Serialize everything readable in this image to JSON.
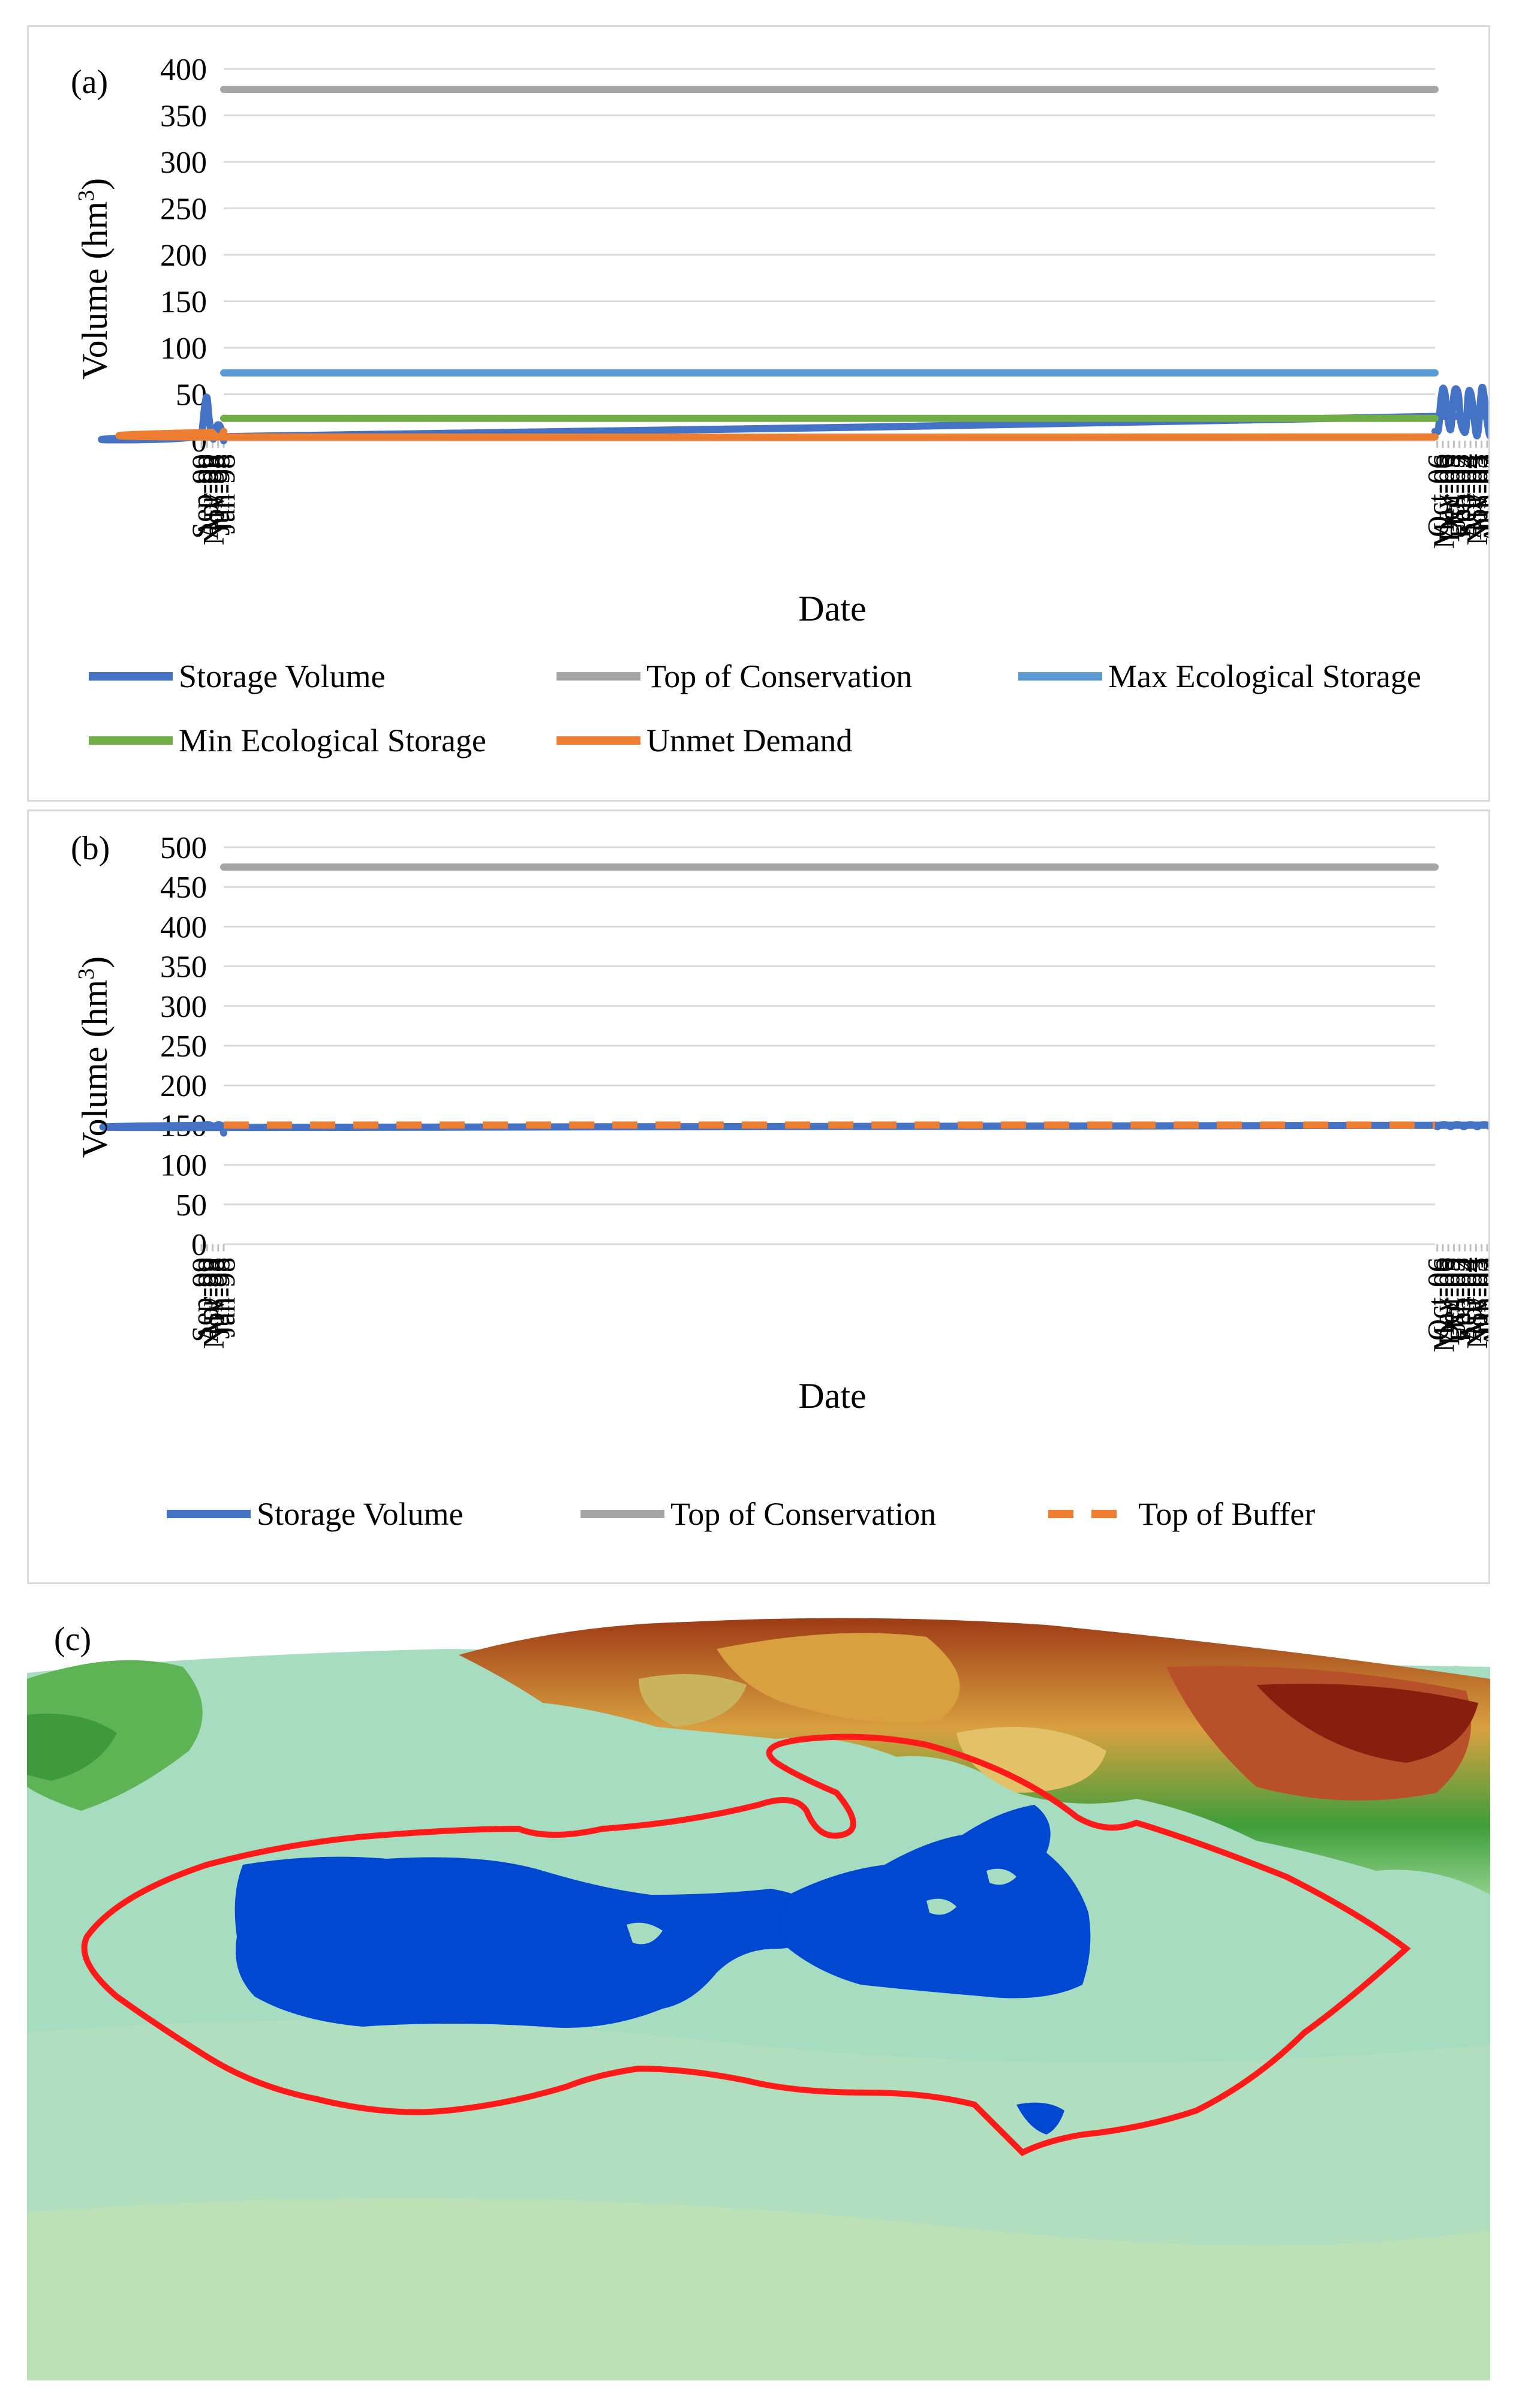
{
  "chart_data": [
    {
      "panel_label": "(a)",
      "type": "line",
      "xlabel": "Date",
      "ylabel": "Volume (hm",
      "ylabel_sup": "3",
      "ylabel_end": ")",
      "ylim": [
        0,
        400
      ],
      "yticks": [
        "0",
        "50",
        "100",
        "150",
        "200",
        "250",
        "300",
        "350",
        "400"
      ],
      "xlim": [
        "1998-01",
        "2006-12"
      ],
      "xticks": [
        "Jan-98",
        "Jun-98",
        "Nov-98",
        "Apr-99",
        "Sep-99",
        "Feb-00",
        "Jul-00",
        "Dec-00",
        "May-01",
        "Oct-01",
        "Mar-02",
        "Aug-02",
        "Jan-03",
        "Jun-03",
        "Nov-03",
        "Apr-04",
        "Sep-04",
        "Feb-05",
        "Jul-05",
        "Dec-05",
        "May-06",
        "Oct-06"
      ],
      "grid": "horizontal",
      "legend_position": "bottom",
      "series": [
        {
          "name": "Storage Volume",
          "color": "#4472c4",
          "style": "solid",
          "x": [
            "Jan-98",
            "Apr-98",
            "Jul-98",
            "Sep-98",
            "Nov-98",
            "Feb-99",
            "Apr-99",
            "Jun-99",
            "Sep-99",
            "Nov-99",
            "Jan-00",
            "Apr-00",
            "Jun-00",
            "Aug-00",
            "Nov-00",
            "Jan-01",
            "Apr-01",
            "Jun-01",
            "Aug-01",
            "Oct-01",
            "Dec-01",
            "Mar-02",
            "May-02",
            "Jul-02",
            "Sep-02",
            "Nov-02",
            "Feb-03",
            "Apr-03",
            "Jun-03",
            "Sep-03",
            "Nov-03",
            "Feb-04",
            "Apr-04",
            "Jun-04",
            "Aug-04",
            "Oct-04",
            "Jan-05",
            "Mar-05",
            "Jun-05",
            "Aug-05",
            "Oct-05",
            "Jan-06",
            "Mar-06",
            "May-06",
            "Jul-06",
            "Sep-06",
            "Dec-06"
          ],
          "y": [
            0,
            15,
            16,
            5,
            3,
            22,
            46,
            38,
            5,
            4,
            28,
            50,
            42,
            8,
            5,
            30,
            52,
            44,
            10,
            6,
            18,
            50,
            54,
            40,
            10,
            7,
            30,
            50,
            55,
            12,
            8,
            38,
            52,
            50,
            14,
            10,
            22,
            50,
            55,
            38,
            12,
            28,
            50,
            56,
            40,
            12,
            10
          ]
        },
        {
          "name": "Top of Conservation",
          "color": "#a5a5a5",
          "style": "solid",
          "x": [
            "Jan-98",
            "Dec-06"
          ],
          "y": [
            378,
            378
          ]
        },
        {
          "name": "Max Ecological Storage",
          "color": "#5b9bd5",
          "style": "solid",
          "x": [
            "Jan-98",
            "Dec-06"
          ],
          "y": [
            73,
            73
          ]
        },
        {
          "name": "Min Ecological Storage",
          "color": "#70ad47",
          "style": "solid",
          "x": [
            "Jan-98",
            "Dec-06"
          ],
          "y": [
            24,
            24
          ]
        },
        {
          "name": "Unmet Demand",
          "color": "#ed7d31",
          "style": "solid",
          "x": [
            "Jan-98",
            "Mar-98",
            "Jun-98",
            "Oct-98",
            "Dec-98",
            "Feb-99",
            "Dec-06"
          ],
          "y": [
            10,
            5,
            4,
            7,
            9,
            4,
            4
          ]
        }
      ]
    },
    {
      "panel_label": "(b)",
      "type": "line",
      "xlabel": "Date",
      "ylabel": "Volume (hm",
      "ylabel_sup": "3",
      "ylabel_end": ")",
      "ylim": [
        0,
        500
      ],
      "yticks": [
        "0",
        "50",
        "100",
        "150",
        "200",
        "250",
        "300",
        "350",
        "400",
        "450",
        "500"
      ],
      "xlim": [
        "1998-01",
        "2006-12"
      ],
      "xticks": [
        "Jan-98",
        "Jun-98",
        "Nov-98",
        "Apr-99",
        "Sep-99",
        "Feb-00",
        "Jul-00",
        "Dec-00",
        "May-01",
        "Oct-01",
        "Mar-02",
        "Aug-02",
        "Jan-03",
        "Jun-03",
        "Nov-03",
        "Apr-04",
        "Sep-04",
        "Feb-05",
        "Jul-05",
        "Dec-05",
        "May-06",
        "Oct-06"
      ],
      "grid": "horizontal",
      "legend_position": "bottom",
      "series": [
        {
          "name": "Storage Volume",
          "color": "#4472c4",
          "style": "solid",
          "x": [
            "Jan-98",
            "Feb-98",
            "Apr-98",
            "Jul-98",
            "Oct-98",
            "Jan-99",
            "Jul-99",
            "Oct-99",
            "Jan-00",
            "Jul-00",
            "Oct-00",
            "Jan-01",
            "Jul-01",
            "Oct-01",
            "Jan-02",
            "Jul-02",
            "Oct-02",
            "Jan-03",
            "Jul-03",
            "Oct-03",
            "Jan-04",
            "Jul-04",
            "Oct-04",
            "Jan-05",
            "Jul-05",
            "Oct-05",
            "Jan-06",
            "Jul-06",
            "Oct-06",
            "Dec-06"
          ],
          "y": [
            140,
            148,
            150,
            150,
            148,
            150,
            150,
            147,
            150,
            150,
            148,
            150,
            150,
            148,
            150,
            150,
            148,
            150,
            150,
            148,
            150,
            150,
            148,
            150,
            150,
            148,
            150,
            150,
            148,
            150
          ]
        },
        {
          "name": "Top of Conservation",
          "color": "#a5a5a5",
          "style": "solid",
          "x": [
            "Jan-98",
            "Dec-06"
          ],
          "y": [
            475,
            475
          ]
        },
        {
          "name": "Top of Buffer",
          "color": "#ed7d31",
          "style": "dashed",
          "x": [
            "Jan-98",
            "Dec-06"
          ],
          "y": [
            150,
            150
          ]
        }
      ]
    }
  ],
  "map_panel": {
    "panel_label": "(c)",
    "colors": {
      "lowland": "#a6dcc0",
      "reservoir": "#0047d1",
      "boundary": "#ff1a1a",
      "forest": "#3fae3f",
      "highland": "#d6a24a",
      "peak": "#8a1e0e"
    }
  }
}
